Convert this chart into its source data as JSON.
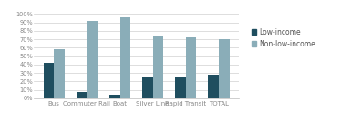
{
  "categories": [
    "Bus",
    "Commuter Rail",
    "Boat",
    "Silver Line",
    "Rapid Transit",
    "TOTAL"
  ],
  "low_income": [
    0.42,
    0.08,
    0.04,
    0.25,
    0.26,
    0.28
  ],
  "non_low_income": [
    0.58,
    0.92,
    0.96,
    0.73,
    0.72,
    0.7
  ],
  "low_income_color": "#1f4e5f",
  "non_low_income_color": "#8aadb8",
  "bar_width": 0.32,
  "ylim": [
    0,
    1.05
  ],
  "yticks": [
    0,
    0.1,
    0.2,
    0.3,
    0.4,
    0.5,
    0.6,
    0.7,
    0.8,
    0.9,
    1.0
  ],
  "ytick_labels": [
    "0%",
    "10%",
    "20%",
    "30%",
    "40%",
    "50%",
    "60%",
    "70%",
    "80%",
    "90%",
    "100%"
  ],
  "legend_labels": [
    "Low-income",
    "Non-low-income"
  ],
  "background_color": "#ffffff",
  "grid_color": "#d0d0d0",
  "label_fontsize": 5.0,
  "tick_fontsize": 4.8,
  "legend_fontsize": 5.5,
  "tick_color": "#888888"
}
